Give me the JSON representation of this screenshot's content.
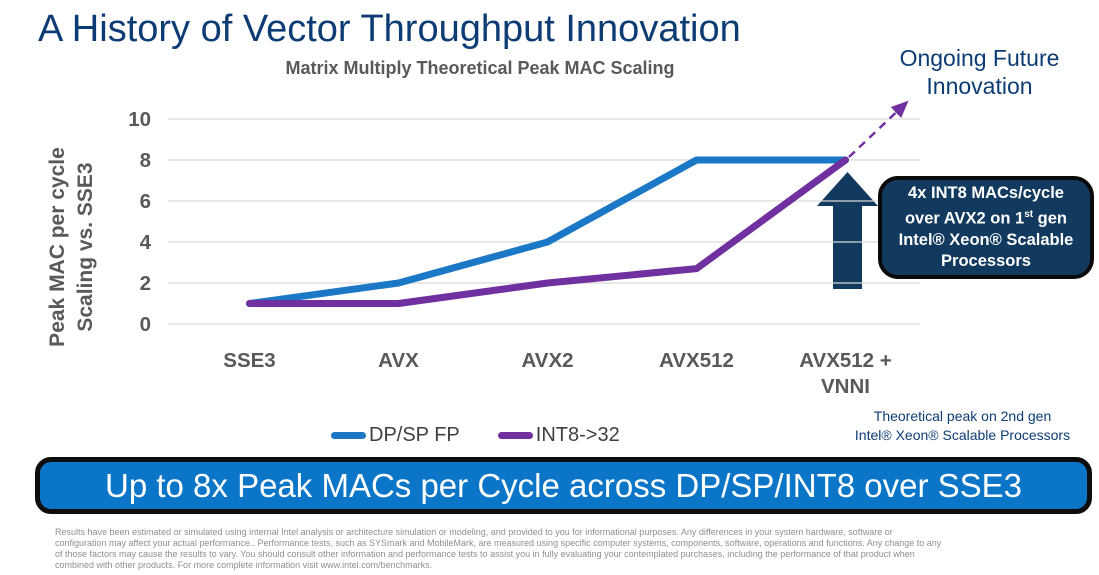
{
  "slide": {
    "title": "A History of Vector Throughput Innovation",
    "future_note": {
      "line1": "Ongoing Future",
      "line2": "Innovation"
    },
    "callout": {
      "line1": "4x INT8 MACs/cycle",
      "line2_pre": "over AVX2 on 1",
      "line2_sup": "st",
      "line2_post": " gen",
      "line3": "Intel® Xeon® Scalable",
      "line4": "Processors"
    },
    "note": {
      "line1": "Theoretical peak on 2nd gen",
      "line2": "Intel® Xeon® Scalable Processors"
    },
    "banner": "Up to 8x Peak MACs per Cycle across DP/SP/INT8 over SSE3",
    "disclaimer": [
      "Results have been estimated or simulated using internal Intel analysis or architecture simulation or modeling, and provided to you for informational purposes. Any differences in your system hardware, software or",
      "configuration may affect your actual performance..  Performance tests, such as SYSmark and MobileMark, are measured using specific computer systems, components, software, operations and functions. Any change to any",
      "of those factors may cause the results to vary. You should consult other information and performance tests to assist you in fully evaluating your contemplated purchases, including the performance of that product when",
      "combined with other products.   For more complete information visit www.intel.com/benchmarks."
    ]
  },
  "chart_data": {
    "type": "line",
    "title": "Matrix Multiply Theoretical Peak MAC Scaling",
    "categories": [
      "SSE3",
      "AVX",
      "AVX2",
      "AVX512",
      "AVX512 +\nVNNI"
    ],
    "series": [
      {
        "name": "DP/SP FP",
        "color": "#1B78C6",
        "values": [
          1,
          2,
          4,
          8,
          8
        ]
      },
      {
        "name": "INT8->32",
        "color": "#7030A0",
        "values": [
          1,
          1,
          2,
          2.7,
          8
        ]
      }
    ],
    "ylabel": "Peak MAC per cycle Scaling vs. SSE3",
    "ylabel_lines": [
      "Peak MAC per cycle",
      "Scaling vs. SSE3"
    ],
    "yticks": [
      0,
      2,
      4,
      6,
      8,
      10
    ],
    "ylim": [
      0,
      10
    ],
    "xlabel": "",
    "grid": true,
    "legend_position": "bottom"
  },
  "colors": {
    "heading_blue": "#0D3C74",
    "banner_blue": "#0B76C8",
    "callout_navy": "#12395E",
    "axis_gray": "#595959",
    "gridline_gray": "#D9D9D9",
    "line_blue": "#1B78C6",
    "line_purple": "#7030A0",
    "disclaimer_gray": "#8F8F8F"
  }
}
